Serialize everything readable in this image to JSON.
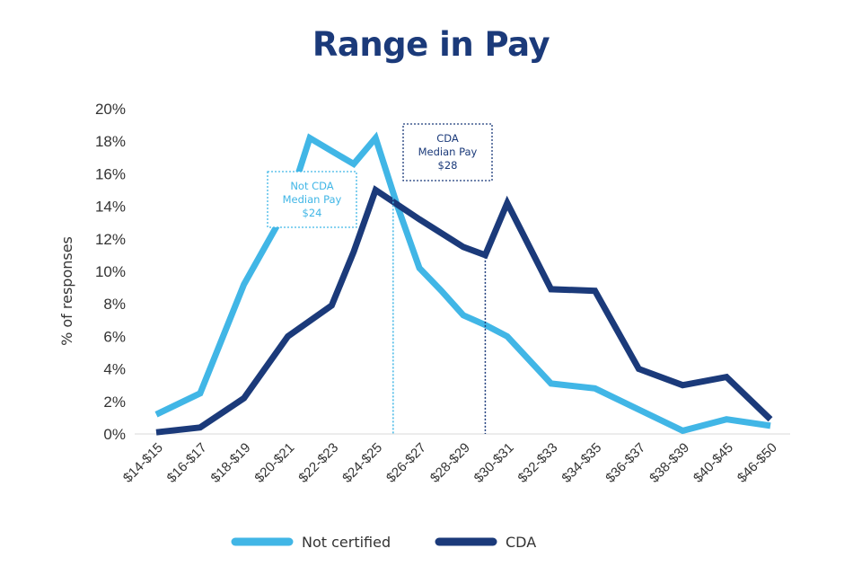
{
  "chart_data": {
    "type": "line",
    "title": "Range in Pay",
    "xlabel": "",
    "ylabel": "% of responses",
    "categories": [
      "$14-$15",
      "$16-$17",
      "$18-$19",
      "$20-$21",
      "$22-$23",
      "$24-$25",
      "$26-$27",
      "$28-$29",
      "$30-$31",
      "$32-$33",
      "$34-$35",
      "$36-$37",
      "$38-$39",
      "$40-$45",
      "$46-$50"
    ],
    "y_ticks": [
      "0%",
      "2%",
      "4%",
      "6%",
      "8%",
      "10%",
      "12%",
      "14%",
      "16%",
      "18%",
      "20%"
    ],
    "ylim": [
      0,
      20
    ],
    "x_axis_line": true,
    "grid": false,
    "legend_position": "bottom",
    "series": [
      {
        "name": "Not certified",
        "color": "#41b6e6",
        "x": [
          0,
          1,
          2,
          3,
          3.5,
          4,
          4.5,
          5,
          5.5,
          6,
          6.5,
          7,
          7.5,
          8,
          9,
          10,
          11,
          12,
          13,
          14
        ],
        "values": [
          1.2,
          2.5,
          9.2,
          14.0,
          18.2,
          17.4,
          16.6,
          18.2,
          14.0,
          10.2,
          8.8,
          7.3,
          6.7,
          6.0,
          3.1,
          2.8,
          1.5,
          0.2,
          0.9,
          0.5
        ]
      },
      {
        "name": "CDA",
        "color": "#1b3a7a",
        "x": [
          0,
          1,
          2,
          3,
          4,
          4.5,
          5,
          6,
          7,
          7.5,
          8,
          9,
          10,
          11,
          12,
          13,
          14
        ],
        "values": [
          0.1,
          0.4,
          2.2,
          6.0,
          7.9,
          11.2,
          15.0,
          13.2,
          11.5,
          11.0,
          14.2,
          8.9,
          8.8,
          4.0,
          3.0,
          3.5,
          0.9
        ]
      }
    ],
    "annotations": [
      {
        "lines": [
          "Not CDA",
          "Median Pay",
          "$24"
        ],
        "x": 5.4,
        "series": "Not certified",
        "color": "#41b6e6"
      },
      {
        "lines": [
          "CDA",
          "Median Pay",
          "$28"
        ],
        "x": 7.5,
        "series": "CDA",
        "color": "#1b3a7a"
      }
    ]
  }
}
